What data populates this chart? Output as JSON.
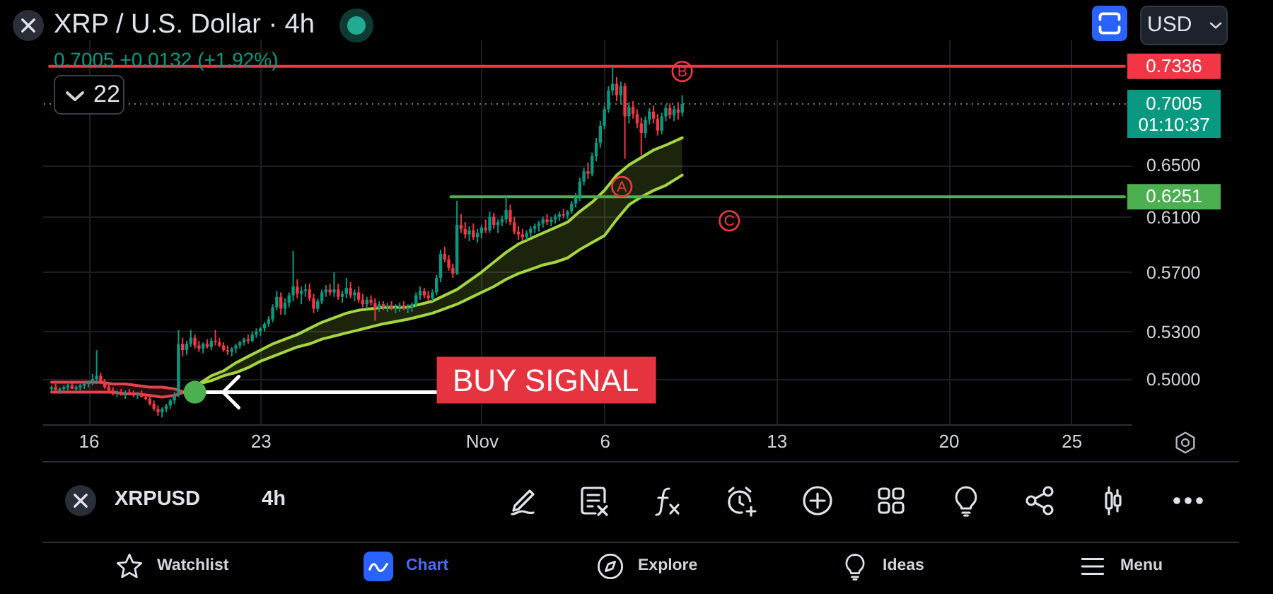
{
  "chart_data": {
    "type": "candlestick",
    "title": "XRP / U.S. Dollar · 4h",
    "subtitle": "0.7005 +0.0132 (+1.92%)",
    "x": [
      "--10-14T12:00",
      "--10-14T16:00",
      "--10-14T20:00",
      "--10-15T00:00",
      "--10-15T04:00",
      "--10-15T08:00",
      "--10-15T12:00",
      "--10-15T16:00",
      "--10-15T20:00",
      "--10-16T00:00",
      "--10-16T04:00",
      "--10-16T08:00",
      "--10-16T12:00",
      "--10-16T16:00",
      "--10-16T20:00",
      "--10-17T00:00",
      "--10-17T04:00",
      "--10-17T08:00",
      "--10-17T12:00",
      "--10-17T16:00",
      "--10-17T20:00",
      "--10-18T00:00",
      "--10-18T04:00",
      "--10-18T08:00",
      "--10-18T12:00",
      "--10-18T16:00",
      "--10-18T20:00",
      "--10-19T00:00",
      "--10-19T04:00",
      "--10-19T08:00",
      "--10-19T12:00",
      "--10-19T16:00",
      "--10-19T20:00",
      "--10-20T00:00",
      "--10-20T04:00",
      "--10-20T08:00",
      "--10-20T12:00",
      "--10-20T16:00",
      "--10-20T20:00",
      "--10-21T00:00",
      "--10-21T04:00",
      "--10-21T08:00",
      "--10-21T12:00",
      "--10-21T16:00",
      "--10-21T20:00",
      "--10-22T00:00",
      "--10-22T04:00",
      "--10-22T08:00",
      "--10-22T12:00",
      "--10-22T16:00",
      "--10-22T20:00",
      "--10-23T00:00",
      "--10-23T04:00",
      "--10-23T08:00",
      "--10-23T12:00",
      "--10-23T16:00",
      "--10-23T20:00",
      "--10-24T00:00",
      "--10-24T04:00",
      "--10-24T08:00",
      "--10-24T12:00",
      "--10-24T16:00",
      "--10-24T20:00",
      "--10-25T00:00",
      "--10-25T04:00",
      "--10-25T08:00",
      "--10-25T12:00",
      "--10-25T16:00",
      "--10-25T20:00",
      "--10-26T00:00",
      "--10-26T04:00",
      "--10-26T08:00",
      "--10-26T12:00",
      "--10-26T16:00",
      "--10-26T20:00",
      "--10-27T00:00",
      "--10-27T04:00",
      "--10-27T08:00",
      "--10-27T12:00",
      "--10-27T16:00",
      "--10-27T20:00",
      "--10-28T00:00",
      "--10-28T04:00",
      "--10-28T08:00",
      "--10-28T12:00",
      "--10-28T16:00",
      "--10-28T20:00",
      "--10-29T00:00",
      "--10-29T04:00",
      "--10-29T08:00",
      "--10-29T12:00",
      "--10-29T16:00",
      "--10-29T20:00",
      "--10-30T00:00",
      "--10-30T04:00",
      "--10-30T08:00",
      "--10-30T12:00",
      "--10-30T16:00",
      "--10-30T20:00",
      "--10-31T00:00",
      "--10-31T04:00",
      "--10-31T08:00",
      "--10-31T12:00",
      "--10-31T16:00",
      "--10-31T20:00",
      "--11-01T00:00",
      "--11-01T04:00",
      "--11-01T08:00",
      "--11-01T12:00",
      "--11-01T16:00",
      "--11-01T20:00",
      "--11-02T00:00",
      "--11-02T04:00",
      "--11-02T08:00",
      "--11-02T12:00",
      "--11-02T16:00",
      "--11-02T20:00",
      "--11-03T00:00",
      "--11-03T04:00",
      "--11-03T08:00",
      "--11-03T12:00",
      "--11-03T16:00",
      "--11-03T20:00",
      "--11-04T00:00",
      "--11-04T04:00",
      "--11-04T08:00",
      "--11-04T12:00",
      "--11-04T16:00",
      "--11-04T20:00",
      "--11-05T00:00",
      "--11-05T04:00",
      "--11-05T08:00",
      "--11-05T12:00",
      "--11-05T16:00",
      "--11-05T20:00",
      "--11-06T00:00",
      "--11-06T04:00",
      "--11-06T08:00",
      "--11-06T12:00",
      "--11-06T16:00",
      "--11-06T20:00",
      "--11-07T00:00",
      "--11-07T04:00",
      "--11-07T08:00",
      "--11-07T12:00",
      "--11-07T16:00",
      "--11-07T20:00",
      "--11-08T00:00",
      "--11-08T04:00",
      "--11-08T08:00",
      "--11-08T12:00",
      "--11-08T16:00",
      "--11-08T20:00",
      "--11-09T00:00",
      "--11-09T04:00"
    ],
    "ohlc": [
      [
        0.494,
        0.496,
        0.492,
        0.495
      ],
      [
        0.495,
        0.497,
        0.493,
        0.493
      ],
      [
        0.493,
        0.495,
        0.491,
        0.494
      ],
      [
        0.494,
        0.496,
        0.492,
        0.495
      ],
      [
        0.495,
        0.497,
        0.493,
        0.496
      ],
      [
        0.496,
        0.498,
        0.494,
        0.494
      ],
      [
        0.494,
        0.496,
        0.492,
        0.495
      ],
      [
        0.495,
        0.497,
        0.493,
        0.496
      ],
      [
        0.496,
        0.498,
        0.494,
        0.497
      ],
      [
        0.497,
        0.499,
        0.495,
        0.498
      ],
      [
        0.498,
        0.503,
        0.496,
        0.5
      ],
      [
        0.5,
        0.518,
        0.497,
        0.502
      ],
      [
        0.502,
        0.504,
        0.497,
        0.498
      ],
      [
        0.498,
        0.5,
        0.494,
        0.495
      ],
      [
        0.495,
        0.497,
        0.492,
        0.493
      ],
      [
        0.493,
        0.495,
        0.49,
        0.491
      ],
      [
        0.491,
        0.493,
        0.489,
        0.492
      ],
      [
        0.492,
        0.494,
        0.49,
        0.49
      ],
      [
        0.49,
        0.493,
        0.488,
        0.492
      ],
      [
        0.492,
        0.494,
        0.49,
        0.491
      ],
      [
        0.491,
        0.493,
        0.489,
        0.49
      ],
      [
        0.49,
        0.492,
        0.488,
        0.491
      ],
      [
        0.491,
        0.493,
        0.489,
        0.489
      ],
      [
        0.489,
        0.491,
        0.487,
        0.488
      ],
      [
        0.488,
        0.49,
        0.484,
        0.485
      ],
      [
        0.485,
        0.487,
        0.481,
        0.482
      ],
      [
        0.482,
        0.484,
        0.478,
        0.48
      ],
      [
        0.48,
        0.483,
        0.477,
        0.482
      ],
      [
        0.482,
        0.485,
        0.48,
        0.484
      ],
      [
        0.484,
        0.488,
        0.482,
        0.487
      ],
      [
        0.487,
        0.492,
        0.485,
        0.49
      ],
      [
        0.49,
        0.531,
        0.489,
        0.522
      ],
      [
        0.522,
        0.526,
        0.514,
        0.518
      ],
      [
        0.518,
        0.524,
        0.515,
        0.522
      ],
      [
        0.522,
        0.531,
        0.52,
        0.526
      ],
      [
        0.526,
        0.528,
        0.519,
        0.521
      ],
      [
        0.521,
        0.524,
        0.517,
        0.519
      ],
      [
        0.519,
        0.523,
        0.516,
        0.522
      ],
      [
        0.522,
        0.525,
        0.519,
        0.52
      ],
      [
        0.52,
        0.526,
        0.518,
        0.524
      ],
      [
        0.524,
        0.531,
        0.521,
        0.523
      ],
      [
        0.523,
        0.526,
        0.52,
        0.521
      ],
      [
        0.521,
        0.523,
        0.517,
        0.518
      ],
      [
        0.518,
        0.521,
        0.515,
        0.517
      ],
      [
        0.517,
        0.52,
        0.514,
        0.519
      ],
      [
        0.519,
        0.522,
        0.516,
        0.521
      ],
      [
        0.521,
        0.524,
        0.519,
        0.523
      ],
      [
        0.523,
        0.526,
        0.521,
        0.525
      ],
      [
        0.525,
        0.528,
        0.522,
        0.524
      ],
      [
        0.524,
        0.53,
        0.523,
        0.528
      ],
      [
        0.528,
        0.532,
        0.526,
        0.53
      ],
      [
        0.53,
        0.533,
        0.527,
        0.532
      ],
      [
        0.532,
        0.536,
        0.53,
        0.535
      ],
      [
        0.535,
        0.54,
        0.533,
        0.538
      ],
      [
        0.538,
        0.548,
        0.536,
        0.546
      ],
      [
        0.546,
        0.557,
        0.544,
        0.553
      ],
      [
        0.553,
        0.556,
        0.541,
        0.545
      ],
      [
        0.545,
        0.552,
        0.541,
        0.549
      ],
      [
        0.549,
        0.556,
        0.546,
        0.554
      ],
      [
        0.554,
        0.585,
        0.55,
        0.56
      ],
      [
        0.56,
        0.565,
        0.552,
        0.555
      ],
      [
        0.555,
        0.56,
        0.548,
        0.557
      ],
      [
        0.557,
        0.562,
        0.553,
        0.558
      ],
      [
        0.558,
        0.562,
        0.55,
        0.552
      ],
      [
        0.552,
        0.555,
        0.542,
        0.545
      ],
      [
        0.545,
        0.552,
        0.543,
        0.55
      ],
      [
        0.55,
        0.558,
        0.548,
        0.556
      ],
      [
        0.556,
        0.561,
        0.553,
        0.558
      ],
      [
        0.558,
        0.562,
        0.554,
        0.556
      ],
      [
        0.556,
        0.57,
        0.553,
        0.558
      ],
      [
        0.558,
        0.562,
        0.551,
        0.553
      ],
      [
        0.553,
        0.557,
        0.549,
        0.555
      ],
      [
        0.555,
        0.566,
        0.552,
        0.559
      ],
      [
        0.559,
        0.563,
        0.552,
        0.554
      ],
      [
        0.554,
        0.558,
        0.55,
        0.556
      ],
      [
        0.556,
        0.56,
        0.549,
        0.551
      ],
      [
        0.551,
        0.555,
        0.546,
        0.548
      ],
      [
        0.548,
        0.553,
        0.545,
        0.551
      ],
      [
        0.551,
        0.554,
        0.547,
        0.549
      ],
      [
        0.549,
        0.552,
        0.537,
        0.545
      ],
      [
        0.545,
        0.55,
        0.543,
        0.548
      ],
      [
        0.548,
        0.55,
        0.544,
        0.546
      ],
      [
        0.546,
        0.549,
        0.543,
        0.547
      ],
      [
        0.547,
        0.55,
        0.544,
        0.545
      ],
      [
        0.545,
        0.548,
        0.542,
        0.546
      ],
      [
        0.546,
        0.549,
        0.543,
        0.547
      ],
      [
        0.547,
        0.55,
        0.544,
        0.545
      ],
      [
        0.545,
        0.548,
        0.542,
        0.546
      ],
      [
        0.546,
        0.549,
        0.543,
        0.548
      ],
      [
        0.548,
        0.556,
        0.546,
        0.554
      ],
      [
        0.554,
        0.56,
        0.551,
        0.557
      ],
      [
        0.557,
        0.559,
        0.552,
        0.554
      ],
      [
        0.554,
        0.557,
        0.55,
        0.552
      ],
      [
        0.552,
        0.558,
        0.55,
        0.556
      ],
      [
        0.556,
        0.568,
        0.554,
        0.566
      ],
      [
        0.566,
        0.586,
        0.563,
        0.583
      ],
      [
        0.583,
        0.588,
        0.577,
        0.579
      ],
      [
        0.579,
        0.582,
        0.571,
        0.573
      ],
      [
        0.573,
        0.576,
        0.566,
        0.569
      ],
      [
        0.569,
        0.622,
        0.568,
        0.604
      ],
      [
        0.604,
        0.612,
        0.598,
        0.601
      ],
      [
        0.601,
        0.606,
        0.594,
        0.597
      ],
      [
        0.597,
        0.603,
        0.592,
        0.6
      ],
      [
        0.6,
        0.605,
        0.593,
        0.595
      ],
      [
        0.595,
        0.601,
        0.591,
        0.598
      ],
      [
        0.598,
        0.604,
        0.594,
        0.602
      ],
      [
        0.602,
        0.608,
        0.598,
        0.6
      ],
      [
        0.6,
        0.614,
        0.598,
        0.61
      ],
      [
        0.61,
        0.613,
        0.601,
        0.604
      ],
      [
        0.604,
        0.608,
        0.598,
        0.606
      ],
      [
        0.606,
        0.611,
        0.603,
        0.608
      ],
      [
        0.608,
        0.626,
        0.605,
        0.615
      ],
      [
        0.615,
        0.619,
        0.604,
        0.606
      ],
      [
        0.606,
        0.61,
        0.597,
        0.599
      ],
      [
        0.599,
        0.603,
        0.593,
        0.597
      ],
      [
        0.597,
        0.601,
        0.592,
        0.595
      ],
      [
        0.595,
        0.6,
        0.593,
        0.598
      ],
      [
        0.598,
        0.603,
        0.595,
        0.601
      ],
      [
        0.601,
        0.605,
        0.598,
        0.603
      ],
      [
        0.603,
        0.607,
        0.599,
        0.605
      ],
      [
        0.605,
        0.61,
        0.602,
        0.608
      ],
      [
        0.608,
        0.612,
        0.604,
        0.606
      ],
      [
        0.606,
        0.61,
        0.603,
        0.608
      ],
      [
        0.608,
        0.612,
        0.605,
        0.61
      ],
      [
        0.61,
        0.614,
        0.607,
        0.612
      ],
      [
        0.612,
        0.616,
        0.609,
        0.611
      ],
      [
        0.611,
        0.615,
        0.608,
        0.614
      ],
      [
        0.614,
        0.622,
        0.612,
        0.62
      ],
      [
        0.62,
        0.628,
        0.617,
        0.625
      ],
      [
        0.625,
        0.64,
        0.622,
        0.637
      ],
      [
        0.637,
        0.648,
        0.634,
        0.645
      ],
      [
        0.645,
        0.652,
        0.639,
        0.643
      ],
      [
        0.643,
        0.66,
        0.641,
        0.657
      ],
      [
        0.657,
        0.672,
        0.653,
        0.668
      ],
      [
        0.668,
        0.686,
        0.664,
        0.682
      ],
      [
        0.682,
        0.699,
        0.679,
        0.696
      ],
      [
        0.696,
        0.716,
        0.693,
        0.712
      ],
      [
        0.712,
        0.7336,
        0.708,
        0.718
      ],
      [
        0.718,
        0.724,
        0.703,
        0.708
      ],
      [
        0.708,
        0.72,
        0.7,
        0.716
      ],
      [
        0.716,
        0.719,
        0.655,
        0.69
      ],
      [
        0.69,
        0.702,
        0.684,
        0.698
      ],
      [
        0.698,
        0.703,
        0.688,
        0.692
      ],
      [
        0.692,
        0.696,
        0.68,
        0.684
      ],
      [
        0.684,
        0.689,
        0.658,
        0.676
      ],
      [
        0.676,
        0.69,
        0.672,
        0.687
      ],
      [
        0.687,
        0.697,
        0.683,
        0.694
      ],
      [
        0.694,
        0.699,
        0.684,
        0.688
      ],
      [
        0.688,
        0.692,
        0.674,
        0.678
      ],
      [
        0.678,
        0.693,
        0.675,
        0.69
      ],
      [
        0.69,
        0.7,
        0.686,
        0.697
      ],
      [
        0.697,
        0.701,
        0.688,
        0.691
      ],
      [
        0.691,
        0.699,
        0.686,
        0.696
      ],
      [
        0.696,
        0.702,
        0.687,
        0.693
      ],
      [
        0.693,
        0.708,
        0.69,
        0.7005
      ]
    ],
    "colors": [
      "#089981",
      "#f23645",
      "#089981",
      "#089981",
      "#089981",
      "#f23645",
      "#089981",
      "#089981",
      "#089981",
      "#089981",
      "#089981",
      "#089981",
      "#f23645",
      "#f23645",
      "#f23645",
      "#f23645",
      "#089981",
      "#f23645",
      "#089981",
      "#f23645",
      "#f23645",
      "#089981",
      "#f23645",
      "#f23645",
      "#f23645",
      "#f23645",
      "#f23645",
      "#089981",
      "#089981",
      "#089981",
      "#089981",
      "#089981",
      "#f23645",
      "#089981",
      "#089981",
      "#f23645",
      "#f23645",
      "#089981",
      "#f23645",
      "#089981",
      "#f23645",
      "#f23645",
      "#f23645",
      "#f23645",
      "#089981",
      "#089981",
      "#089981",
      "#089981",
      "#f23645",
      "#089981",
      "#089981",
      "#089981",
      "#089981",
      "#089981",
      "#089981",
      "#089981",
      "#f23645",
      "#089981",
      "#089981",
      "#089981",
      "#f23645",
      "#089981",
      "#089981",
      "#f23645",
      "#f23645",
      "#089981",
      "#089981",
      "#089981",
      "#f23645",
      "#089981",
      "#f23645",
      "#089981",
      "#089981",
      "#f23645",
      "#089981",
      "#f23645",
      "#f23645",
      "#089981",
      "#f23645",
      "#f23645",
      "#089981",
      "#f23645",
      "#089981",
      "#f23645",
      "#089981",
      "#089981",
      "#f23645",
      "#089981",
      "#089981",
      "#089981",
      "#089981",
      "#f23645",
      "#f23645",
      "#089981",
      "#089981",
      "#089981",
      "#f23645",
      "#f23645",
      "#f23645",
      "#089981",
      "#f23645",
      "#f23645",
      "#089981",
      "#f23645",
      "#089981",
      "#089981",
      "#f23645",
      "#089981",
      "#f23645",
      "#089981",
      "#089981",
      "#089981",
      "#f23645",
      "#f23645",
      "#f23645",
      "#f23645",
      "#089981",
      "#089981",
      "#089981",
      "#089981",
      "#089981",
      "#f23645",
      "#089981",
      "#089981",
      "#089981",
      "#f23645",
      "#089981",
      "#089981",
      "#089981",
      "#089981",
      "#089981",
      "#f23645",
      "#089981",
      "#089981",
      "#089981",
      "#089981",
      "#089981",
      "#089981",
      "#f23645",
      "#089981",
      "#f23645",
      "#089981",
      "#f23645",
      "#f23645",
      "#f23645",
      "#089981",
      "#089981",
      "#f23645",
      "#f23645",
      "#089981",
      "#089981",
      "#f23645",
      "#089981",
      "#f23645",
      "#089981"
    ],
    "series": [
      {
        "type": "line",
        "color": "#e0454f",
        "x": [
          "--10-14T12:00",
          "--10-15T00:00",
          "--10-15T12:00",
          "--10-16T00:00",
          "--10-16T12:00",
          "--10-17T00:00",
          "--10-17T12:00",
          "--10-18T00:00",
          "--10-18T12:00",
          "--10-19T00:00",
          "--10-19T12:00",
          "--10-19T22:00"
        ],
        "values": [
          0.492,
          0.492,
          0.492,
          0.492,
          0.492,
          0.492,
          0.491,
          0.491,
          0.49,
          0.489,
          0.49,
          0.492
        ],
        "lower": [
          0.492,
          0.492,
          0.492,
          0.492,
          0.492,
          0.492,
          0.491,
          0.491,
          0.49,
          0.489,
          0.49,
          0.492
        ],
        "upper": [
          0.498,
          0.498,
          0.498,
          0.498,
          0.498,
          0.497,
          0.497,
          0.496,
          0.495,
          0.495,
          0.494,
          0.492
        ]
      },
      {
        "type": "line",
        "color": "#e0454f",
        "x": [
          "--10-14T12:00",
          "--10-15T00:00",
          "--10-15T12:00",
          "--10-16T00:00",
          "--10-16T12:00",
          "--10-17T00:00",
          "--10-17T12:00",
          "--10-18T00:00",
          "--10-18T12:00",
          "--10-19T00:00",
          "--10-19T12:00",
          "--10-19T22:00"
        ],
        "values": [
          0.498,
          0.498,
          0.498,
          0.498,
          0.498,
          0.497,
          0.497,
          0.496,
          0.495,
          0.495,
          0.494,
          0.492
        ]
      },
      {
        "type": "line",
        "color": "#a5d63f",
        "x": [
          "--10-19T22:00",
          "--10-20T12:00",
          "--10-21T00:00",
          "--10-21T12:00",
          "--10-22T00:00",
          "--10-22T12:00",
          "--10-23T00:00",
          "--10-23T12:00",
          "--10-24T00:00",
          "--10-24T12:00",
          "--10-25T00:00",
          "--10-25T12:00",
          "--10-26T00:00",
          "--10-26T12:00",
          "--10-27T00:00",
          "--10-28T00:00",
          "--10-29T00:00",
          "--10-29T12:00",
          "--10-30T00:00",
          "--10-30T12:00",
          "--10-31T00:00",
          "--10-31T12:00",
          "--11-01T00:00",
          "--11-01T12:00",
          "--11-02T00:00",
          "--11-02T12:00",
          "--11-03T00:00",
          "--11-03T12:00",
          "--11-04T00:00",
          "--11-04T12:00",
          "--11-05T00:00",
          "--11-05T12:00",
          "--11-06T00:00",
          "--11-06T12:00",
          "--11-07T00:00",
          "--11-07T12:00",
          "--11-08T00:00",
          "--11-08T12:00",
          "--11-09T04:00"
        ],
        "values": [
          0.492,
          0.497,
          0.502,
          0.505,
          0.51,
          0.514,
          0.518,
          0.522,
          0.525,
          0.528,
          0.532,
          0.536,
          0.539,
          0.542,
          0.544,
          0.546,
          0.546,
          0.548,
          0.55,
          0.554,
          0.558,
          0.564,
          0.57,
          0.577,
          0.584,
          0.59,
          0.594,
          0.598,
          0.602,
          0.606,
          0.614,
          0.621,
          0.63,
          0.642,
          0.65,
          0.656,
          0.662,
          0.666,
          0.672
        ],
        "lower": [
          0.492,
          0.497,
          0.499,
          0.502,
          0.504,
          0.507,
          0.511,
          0.514,
          0.517,
          0.52,
          0.522,
          0.525,
          0.527,
          0.529,
          0.531,
          0.535,
          0.538,
          0.54,
          0.542,
          0.545,
          0.548,
          0.552,
          0.556,
          0.56,
          0.565,
          0.569,
          0.572,
          0.575,
          0.577,
          0.58,
          0.586,
          0.591,
          0.596,
          0.608,
          0.619,
          0.625,
          0.63,
          0.634,
          0.642
        ],
        "upper": [
          0.492,
          0.497,
          0.502,
          0.505,
          0.51,
          0.514,
          0.518,
          0.522,
          0.525,
          0.528,
          0.532,
          0.536,
          0.539,
          0.542,
          0.544,
          0.546,
          0.546,
          0.548,
          0.55,
          0.554,
          0.558,
          0.564,
          0.57,
          0.577,
          0.584,
          0.59,
          0.594,
          0.598,
          0.602,
          0.606,
          0.614,
          0.621,
          0.63,
          0.642,
          0.65,
          0.656,
          0.662,
          0.666,
          0.672
        ]
      },
      {
        "type": "line",
        "color": "#a5d63f",
        "x": [
          "--10-19T22:00",
          "--10-20T12:00",
          "--10-21T00:00",
          "--10-21T12:00",
          "--10-22T00:00",
          "--10-22T12:00",
          "--10-23T00:00",
          "--10-23T12:00",
          "--10-24T00:00",
          "--10-24T12:00",
          "--10-25T00:00",
          "--10-25T12:00",
          "--10-26T00:00",
          "--10-26T12:00",
          "--10-27T00:00",
          "--10-28T00:00",
          "--10-29T00:00",
          "--10-29T12:00",
          "--10-30T00:00",
          "--10-30T12:00",
          "--10-31T00:00",
          "--10-31T12:00",
          "--11-01T00:00",
          "--11-01T12:00",
          "--11-02T00:00",
          "--11-02T12:00",
          "--11-03T00:00",
          "--11-03T12:00",
          "--11-04T00:00",
          "--11-04T12:00",
          "--11-05T00:00",
          "--11-05T12:00",
          "--11-06T00:00",
          "--11-06T12:00",
          "--11-07T00:00",
          "--11-07T12:00",
          "--11-08T00:00",
          "--11-08T12:00",
          "--11-09T04:00"
        ],
        "values": [
          0.492,
          0.497,
          0.499,
          0.502,
          0.504,
          0.507,
          0.511,
          0.514,
          0.517,
          0.52,
          0.522,
          0.525,
          0.527,
          0.529,
          0.531,
          0.535,
          0.538,
          0.54,
          0.542,
          0.545,
          0.548,
          0.552,
          0.556,
          0.56,
          0.565,
          0.569,
          0.572,
          0.575,
          0.577,
          0.58,
          0.586,
          0.591,
          0.596,
          0.608,
          0.619,
          0.625,
          0.63,
          0.634,
          0.642
        ]
      },
      {
        "type": "line",
        "color": "#f23645",
        "x": [
          "--10-14T10:00",
          "--11-27T04:00"
        ],
        "values": [
          0.7336,
          0.7336
        ],
        "value_labels": [
          null,
          "0.7336"
        ]
      },
      {
        "type": "line",
        "color": "#4caf50",
        "x": [
          "--10-30T18:00",
          "--11-27T04:00"
        ],
        "values": [
          0.6251,
          0.6251
        ],
        "value_labels": [
          null,
          "0.6251"
        ]
      },
      {
        "type": "scatter",
        "color": "#4caf50",
        "marker": "circle",
        "x": [
          "--10-20T08:00"
        ],
        "values": [
          0.492
        ]
      }
    ],
    "ref_lines": [
      {
        "axis": "y",
        "value": 0.7005,
        "label": "0.7005",
        "line_style": "dotted",
        "color": "#787b86"
      }
    ],
    "annotations": [
      {
        "text": "A",
        "x": "--11-06T17:00",
        "y": 0.633
      },
      {
        "text": "B",
        "x": "--11-09T04:00",
        "y": 0.729
      },
      {
        "text": "C",
        "x": "--11-11T02:00",
        "y": 0.607
      },
      {
        "text": "BUY SIGNAL",
        "x": "--10-20T08:00",
        "y": 0.492
      },
      "22",
      "USD",
      "01:10:37",
      "XRPUSD",
      "4h",
      "Watchlist",
      "Chart",
      "Explore",
      "Ideas",
      "Menu"
    ],
    "xlim": [
      "--10-14T10:00",
      "--11-27T04:00"
    ],
    "ylim": [
      0.473,
      0.758
    ],
    "xticks": [
      {
        "value": "--10-16",
        "label": "16"
      },
      {
        "value": "--10-23",
        "label": "23"
      },
      {
        "value": "--11-01",
        "label": "Nov"
      },
      {
        "value": "--11-06",
        "label": "6"
      },
      {
        "value": "--11-13",
        "label": "13"
      },
      {
        "value": "--11-20",
        "label": "20"
      },
      {
        "value": "--11-25",
        "label": "25"
      }
    ],
    "yticks": [
      {
        "value": 0.5,
        "label": "0.5000"
      },
      {
        "value": 0.53,
        "label": "0.5300"
      },
      {
        "value": 0.57,
        "label": "0.5700"
      },
      {
        "value": 0.61,
        "label": "0.6100"
      },
      {
        "value": 0.65,
        "label": "0.6500"
      }
    ],
    "log": true,
    "grid": true
  }
}
